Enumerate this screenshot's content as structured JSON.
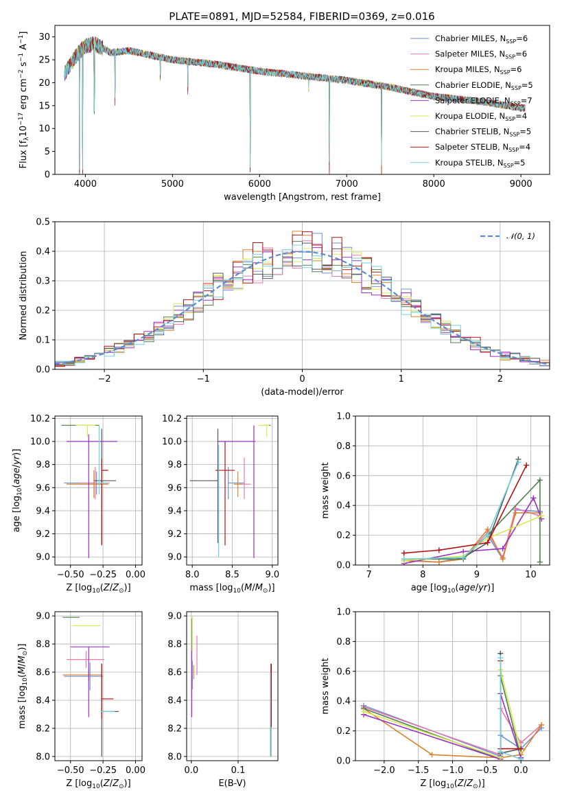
{
  "figure": {
    "title": "PLATE=0891, MJD=52584, FIBERID=0369, z=0.016"
  },
  "models": [
    {
      "name": "Chabrier MILES",
      "nssp": 6,
      "color": "#6f8fd8"
    },
    {
      "name": "Salpeter MILES",
      "nssp": 6,
      "color": "#e879a8"
    },
    {
      "name": "Kroupa MILES",
      "nssp": 6,
      "color": "#d9822b"
    },
    {
      "name": "Chabrier ELODIE",
      "nssp": 5,
      "color": "#4f7f4f"
    },
    {
      "name": "Salpeter ELODIE",
      "nssp": 7,
      "color": "#9a2fc4"
    },
    {
      "name": "Kroupa ELODIE",
      "nssp": 4,
      "color": "#d8e850"
    },
    {
      "name": "Chabrier STELIB",
      "nssp": 5,
      "color": "#555555"
    },
    {
      "name": "Salpeter STELIB",
      "nssp": 4,
      "color": "#b01010"
    },
    {
      "name": "Kroupa STELIB",
      "nssp": 5,
      "color": "#70d0d8"
    }
  ],
  "chart_data": [
    {
      "id": "spectrum",
      "type": "line",
      "xlabel": "wavelength [Angstrom, rest frame]",
      "ylabel": "Flux [f_λ10^-17 erg cm^-2 s^-1 A^-1]",
      "xlim": [
        3650,
        9330
      ],
      "ylim": [
        0,
        32.5
      ],
      "xticks": [
        4000,
        5000,
        6000,
        7000,
        8000,
        9000
      ],
      "yticks": [
        0,
        5,
        10,
        15,
        20,
        25,
        30
      ],
      "continuum": {
        "x": [
          3760,
          3900,
          4000,
          4100,
          4300,
          4500,
          5000,
          5500,
          6000,
          6500,
          7000,
          7500,
          8000,
          8500,
          9000,
          9050
        ],
        "y": [
          22,
          26,
          28,
          28.5,
          26.5,
          27,
          25,
          24,
          22.5,
          21.5,
          20.5,
          19,
          17,
          16,
          14.5,
          14.5
        ]
      },
      "absorption_features": [
        [
          3933,
          0
        ],
        [
          3968,
          0
        ],
        [
          4102,
          13
        ],
        [
          4340,
          15
        ],
        [
          4861,
          20
        ],
        [
          5175,
          17
        ],
        [
          5893,
          0.5
        ],
        [
          6563,
          18
        ],
        [
          6800,
          0
        ],
        [
          7400,
          0
        ]
      ],
      "grid": false,
      "legend": "top-right"
    },
    {
      "id": "residuals",
      "type": "line",
      "xlabel": "(data-model)/error",
      "ylabel": "Normed distribution",
      "xlim": [
        -2.5,
        2.5
      ],
      "ylim": [
        0,
        0.5
      ],
      "xticks": [
        -2,
        -1,
        0,
        1,
        2
      ],
      "yticks": [
        0.0,
        0.1,
        0.2,
        0.3,
        0.4,
        0.5
      ],
      "reference": {
        "name": "𝒩(0, 1)",
        "mean": 0,
        "sigma": 1
      },
      "grid": true,
      "legend": "top-right"
    },
    {
      "id": "age-vs-Z",
      "type": "scatter",
      "xlabel": "Z [log10(Z/Z⊙)]",
      "ylabel": "age [log10(age/yr)]",
      "xlim": [
        -0.62,
        0.05
      ],
      "ylim": [
        8.93,
        10.22
      ],
      "xticks": [
        -0.5,
        -0.25,
        0.0
      ],
      "yticks": [
        9.0,
        9.2,
        9.4,
        9.6,
        9.8,
        10.0,
        10.2
      ],
      "points": [
        {
          "x": -0.3,
          "y": 9.64,
          "xerr": [
            0.25,
            0.1
          ],
          "yerr": [
            0.1,
            0.1
          ]
        },
        {
          "x": -0.31,
          "y": 9.64,
          "xerr": [
            0.12,
            0.11
          ],
          "yerr": [
            0.14,
            0.14
          ]
        },
        {
          "x": -0.32,
          "y": 9.63,
          "xerr": [
            0.21,
            0.11
          ],
          "yerr": [
            0.12,
            0.12
          ]
        },
        {
          "x": -0.43,
          "y": 10.14,
          "xerr": [
            0.14,
            0.15
          ],
          "yerr": [
            0.0,
            0.0
          ]
        },
        {
          "x": -0.36,
          "y": 10.0,
          "xerr": [
            0.17,
            0.22
          ],
          "yerr": [
            1.01,
            0.06
          ]
        },
        {
          "x": -0.37,
          "y": 10.14,
          "xerr": [
            0.09,
            0.06
          ],
          "yerr": [
            0.1,
            0.0
          ]
        },
        {
          "x": -0.26,
          "y": 9.66,
          "xerr": [
            0.06,
            0.11
          ],
          "yerr": [
            0.55,
            0.45
          ]
        },
        {
          "x": -0.26,
          "y": 9.75,
          "xerr": [
            0.0,
            0.05
          ],
          "yerr": [
            0.65,
            0.1
          ]
        },
        {
          "x": -0.28,
          "y": 9.64,
          "xerr": [
            0.02,
            0.06
          ],
          "yerr": [
            0.1,
            0.5
          ]
        }
      ],
      "grid": true
    },
    {
      "id": "age-vs-mass",
      "type": "scatter",
      "xlabel": "mass [log10(M/M⊙)]",
      "ylabel": "",
      "xlim": [
        7.93,
        9.07
      ],
      "ylim": [
        8.93,
        10.22
      ],
      "xticks": [
        8.0,
        8.5,
        9.0
      ],
      "yticks": [
        9.0,
        9.2,
        9.4,
        9.6,
        9.8,
        10.0,
        10.2
      ],
      "points": [
        {
          "x": 8.45,
          "y": 9.64,
          "xerr": [
            0.0,
            0.2
          ],
          "yerr": [
            0.14,
            0.14
          ]
        },
        {
          "x": 8.65,
          "y": 9.63,
          "xerr": [
            0.05,
            0.08
          ],
          "yerr": [
            0.13,
            0.23
          ]
        },
        {
          "x": 8.57,
          "y": 9.63,
          "xerr": [
            0.05,
            0.05
          ],
          "yerr": [
            0.11,
            0.11
          ]
        },
        {
          "x": 8.95,
          "y": 10.14,
          "xerr": [
            0.05,
            0.03
          ],
          "yerr": [
            0.0,
            0.0
          ]
        },
        {
          "x": 8.77,
          "y": 10.0,
          "xerr": [
            0.45,
            0.02
          ],
          "yerr": [
            1.01,
            0.14
          ]
        },
        {
          "x": 8.93,
          "y": 10.14,
          "xerr": [
            0.1,
            0.03
          ],
          "yerr": [
            0.1,
            0.0
          ]
        },
        {
          "x": 8.32,
          "y": 9.66,
          "xerr": [
            0.35,
            0.0
          ],
          "yerr": [
            0.54,
            0.45
          ]
        },
        {
          "x": 8.41,
          "y": 9.75,
          "xerr": [
            0.12,
            0.12
          ],
          "yerr": [
            0.65,
            0.25
          ]
        },
        {
          "x": 8.33,
          "y": 9.66,
          "xerr": [
            0.0,
            0.0
          ],
          "yerr": [
            0.66,
            0.31
          ]
        }
      ],
      "grid": true
    },
    {
      "id": "massweight-vs-age",
      "type": "line",
      "xlabel": "age [log10(age/yr)]",
      "ylabel": "mass weight",
      "xlim": [
        6.75,
        10.35
      ],
      "ylim": [
        0.0,
        1.0
      ],
      "xticks": [
        7,
        8,
        9,
        10
      ],
      "yticks": [
        0.0,
        0.2,
        0.4,
        0.6,
        0.8,
        1.0
      ],
      "series": [
        {
          "x": [
            7.65,
            8.3,
            8.75,
            9.2,
            9.48,
            9.72,
            10.17
          ],
          "y": [
            0.03,
            0.02,
            0.05,
            0.2,
            0.04,
            0.37,
            0.36
          ]
        },
        {
          "x": [
            7.65,
            8.3,
            8.75,
            9.2,
            9.48,
            9.72,
            10.17
          ],
          "y": [
            0.03,
            0.02,
            0.04,
            0.22,
            0.05,
            0.38,
            0.33
          ]
        },
        {
          "x": [
            7.65,
            8.3,
            8.75,
            9.2,
            9.48,
            9.72,
            10.17
          ],
          "y": [
            0.03,
            0.02,
            0.04,
            0.24,
            0.04,
            0.35,
            0.35
          ]
        },
        {
          "x": [
            7.65,
            8.75,
            9.2,
            10.17,
            10.17
          ],
          "y": [
            0.04,
            0.04,
            0.2,
            0.57,
            0.02
          ]
        },
        {
          "x": [
            7.65,
            8.75,
            9.48,
            10.05,
            10.2
          ],
          "y": [
            0.01,
            0.09,
            0.11,
            0.45,
            0.31
          ]
        },
        {
          "x": [
            7.65,
            8.75,
            9.2,
            10.2
          ],
          "y": [
            0.03,
            0.06,
            0.18,
            0.33
          ]
        },
        {
          "x": [
            8.75,
            9.2,
            9.77
          ],
          "y": [
            0.05,
            0.15,
            0.71
          ]
        },
        {
          "x": [
            7.65,
            8.3,
            9.2,
            9.92
          ],
          "y": [
            0.08,
            0.1,
            0.15,
            0.67
          ]
        },
        {
          "x": [
            7.65,
            8.75,
            9.2,
            9.77
          ],
          "y": [
            0.04,
            0.05,
            0.2,
            0.69
          ]
        }
      ],
      "grid": true
    },
    {
      "id": "mass-vs-Z",
      "type": "scatter",
      "xlabel": "Z [log10(Z/Z⊙)]",
      "ylabel": "mass [log10(M/M⊙)]",
      "xlim": [
        -0.62,
        0.05
      ],
      "ylim": [
        7.97,
        9.03
      ],
      "xticks": [
        -0.5,
        -0.25,
        0.0
      ],
      "yticks": [
        8.0,
        8.2,
        8.4,
        8.6,
        8.8,
        9.0
      ],
      "points": [
        {
          "x": -0.35,
          "y": 8.57,
          "xerr": [
            0.2,
            0.1
          ],
          "yerr": [
            0.1,
            0.1
          ]
        },
        {
          "x": -0.38,
          "y": 8.69,
          "xerr": [
            0.15,
            0.14
          ],
          "yerr": [
            0.06,
            0.06
          ]
        },
        {
          "x": -0.36,
          "y": 8.58,
          "xerr": [
            0.2,
            0.1
          ],
          "yerr": [
            0.04,
            0.04
          ]
        },
        {
          "x": -0.47,
          "y": 8.99,
          "xerr": [
            0.09,
            0.04
          ],
          "yerr": [
            0.0,
            0.0
          ]
        },
        {
          "x": -0.36,
          "y": 8.78,
          "xerr": [
            0.14,
            0.16
          ],
          "yerr": [
            0.5,
            0.0
          ]
        },
        {
          "x": -0.37,
          "y": 8.93,
          "xerr": [
            0.12,
            0.1
          ],
          "yerr": [
            0.0,
            0.0
          ]
        },
        {
          "x": -0.26,
          "y": 8.32,
          "xerr": [
            0.0,
            0.13
          ],
          "yerr": [
            0.32,
            0.34
          ]
        },
        {
          "x": -0.26,
          "y": 8.41,
          "xerr": [
            0.0,
            0.09
          ],
          "yerr": [
            0.14,
            0.25
          ]
        },
        {
          "x": -0.27,
          "y": 8.32,
          "xerr": [
            0.0,
            0.11
          ],
          "yerr": [
            0.0,
            0.0
          ]
        }
      ],
      "grid": true
    },
    {
      "id": "mass-vs-ebv",
      "type": "scatter",
      "xlabel": "E(B-V)",
      "ylabel": "",
      "xlim": [
        -0.01,
        0.185
      ],
      "ylim": [
        7.97,
        9.03
      ],
      "xticks": [
        0.0,
        0.1
      ],
      "yticks": [
        8.0,
        8.2,
        8.4,
        8.6,
        8.8,
        9.0
      ],
      "points": [
        {
          "x": 0.002,
          "y": 8.58,
          "xerr": [
            0,
            0
          ],
          "yerr": [
            0.1,
            0.1
          ]
        },
        {
          "x": 0.012,
          "y": 8.68,
          "xerr": [
            0,
            0
          ],
          "yerr": [
            0.1,
            0.18
          ]
        },
        {
          "x": 0.005,
          "y": 8.6,
          "xerr": [
            0,
            0
          ],
          "yerr": [
            0.05,
            0.05
          ]
        },
        {
          "x": 0.001,
          "y": 8.93,
          "xerr": [
            0,
            0
          ],
          "yerr": [
            0.15,
            0.05
          ]
        },
        {
          "x": 0.001,
          "y": 8.6,
          "xerr": [
            0,
            0
          ],
          "yerr": [
            0.32,
            0.18
          ]
        },
        {
          "x": 0.002,
          "y": 8.9,
          "xerr": [
            0,
            0
          ],
          "yerr": [
            0.15,
            0.1
          ]
        },
        {
          "x": 0.17,
          "y": 8.32,
          "xerr": [
            0,
            0
          ],
          "yerr": [
            0.32,
            0.34
          ]
        },
        {
          "x": 0.171,
          "y": 8.41,
          "xerr": [
            0,
            0
          ],
          "yerr": [
            0.2,
            0.25
          ]
        },
        {
          "x": 0.169,
          "y": 8.3,
          "xerr": [
            0,
            0
          ],
          "yerr": [
            0.3,
            0.3
          ]
        }
      ],
      "grid": true
    },
    {
      "id": "massweight-vs-Z",
      "type": "line",
      "xlabel": "Z [log10(Z/Z⊙)]",
      "ylabel": "mass weight",
      "xlim": [
        -2.42,
        0.42
      ],
      "ylim": [
        0.0,
        1.0
      ],
      "xticks": [
        -2.0,
        -1.5,
        -1.0,
        -0.5,
        0.0
      ],
      "yticks": [
        0.0,
        0.2,
        0.4,
        0.6,
        0.8,
        1.0
      ],
      "series": [
        {
          "x": [
            -2.3,
            -0.3,
            -0.3,
            0.0,
            0.3
          ],
          "y": [
            0.37,
            0.03,
            0.17,
            0.08,
            0.22
          ]
        },
        {
          "x": [
            -2.3,
            -0.3,
            -0.3,
            0.0,
            0.3
          ],
          "y": [
            0.36,
            0.04,
            0.35,
            0.12,
            0.24
          ]
        },
        {
          "x": [
            -2.3,
            -1.3,
            -0.3,
            0.0,
            0.3
          ],
          "y": [
            0.35,
            0.04,
            0.02,
            0.04,
            0.24
          ]
        },
        {
          "x": [
            -2.3,
            -0.3,
            -0.3,
            0.0
          ],
          "y": [
            0.35,
            0.01,
            0.57,
            0.02
          ]
        },
        {
          "x": [
            -2.3,
            -0.3,
            -0.3,
            0.0
          ],
          "y": [
            0.31,
            0.01,
            0.45,
            0.02
          ]
        },
        {
          "x": [
            -2.3,
            -0.3,
            -0.3,
            0.0
          ],
          "y": [
            0.33,
            0.02,
            0.61,
            0.06
          ]
        },
        {
          "x": [
            -0.3,
            -0.3,
            0.0
          ],
          "y": [
            0.72,
            0.05,
            0.08
          ]
        },
        {
          "x": [
            -0.3,
            -0.3,
            0.0
          ],
          "y": [
            0.67,
            0.08,
            0.08
          ]
        },
        {
          "x": [
            -0.3,
            -0.3,
            0.0
          ],
          "y": [
            0.69,
            0.06,
            0.01
          ]
        }
      ],
      "grid": true
    }
  ]
}
